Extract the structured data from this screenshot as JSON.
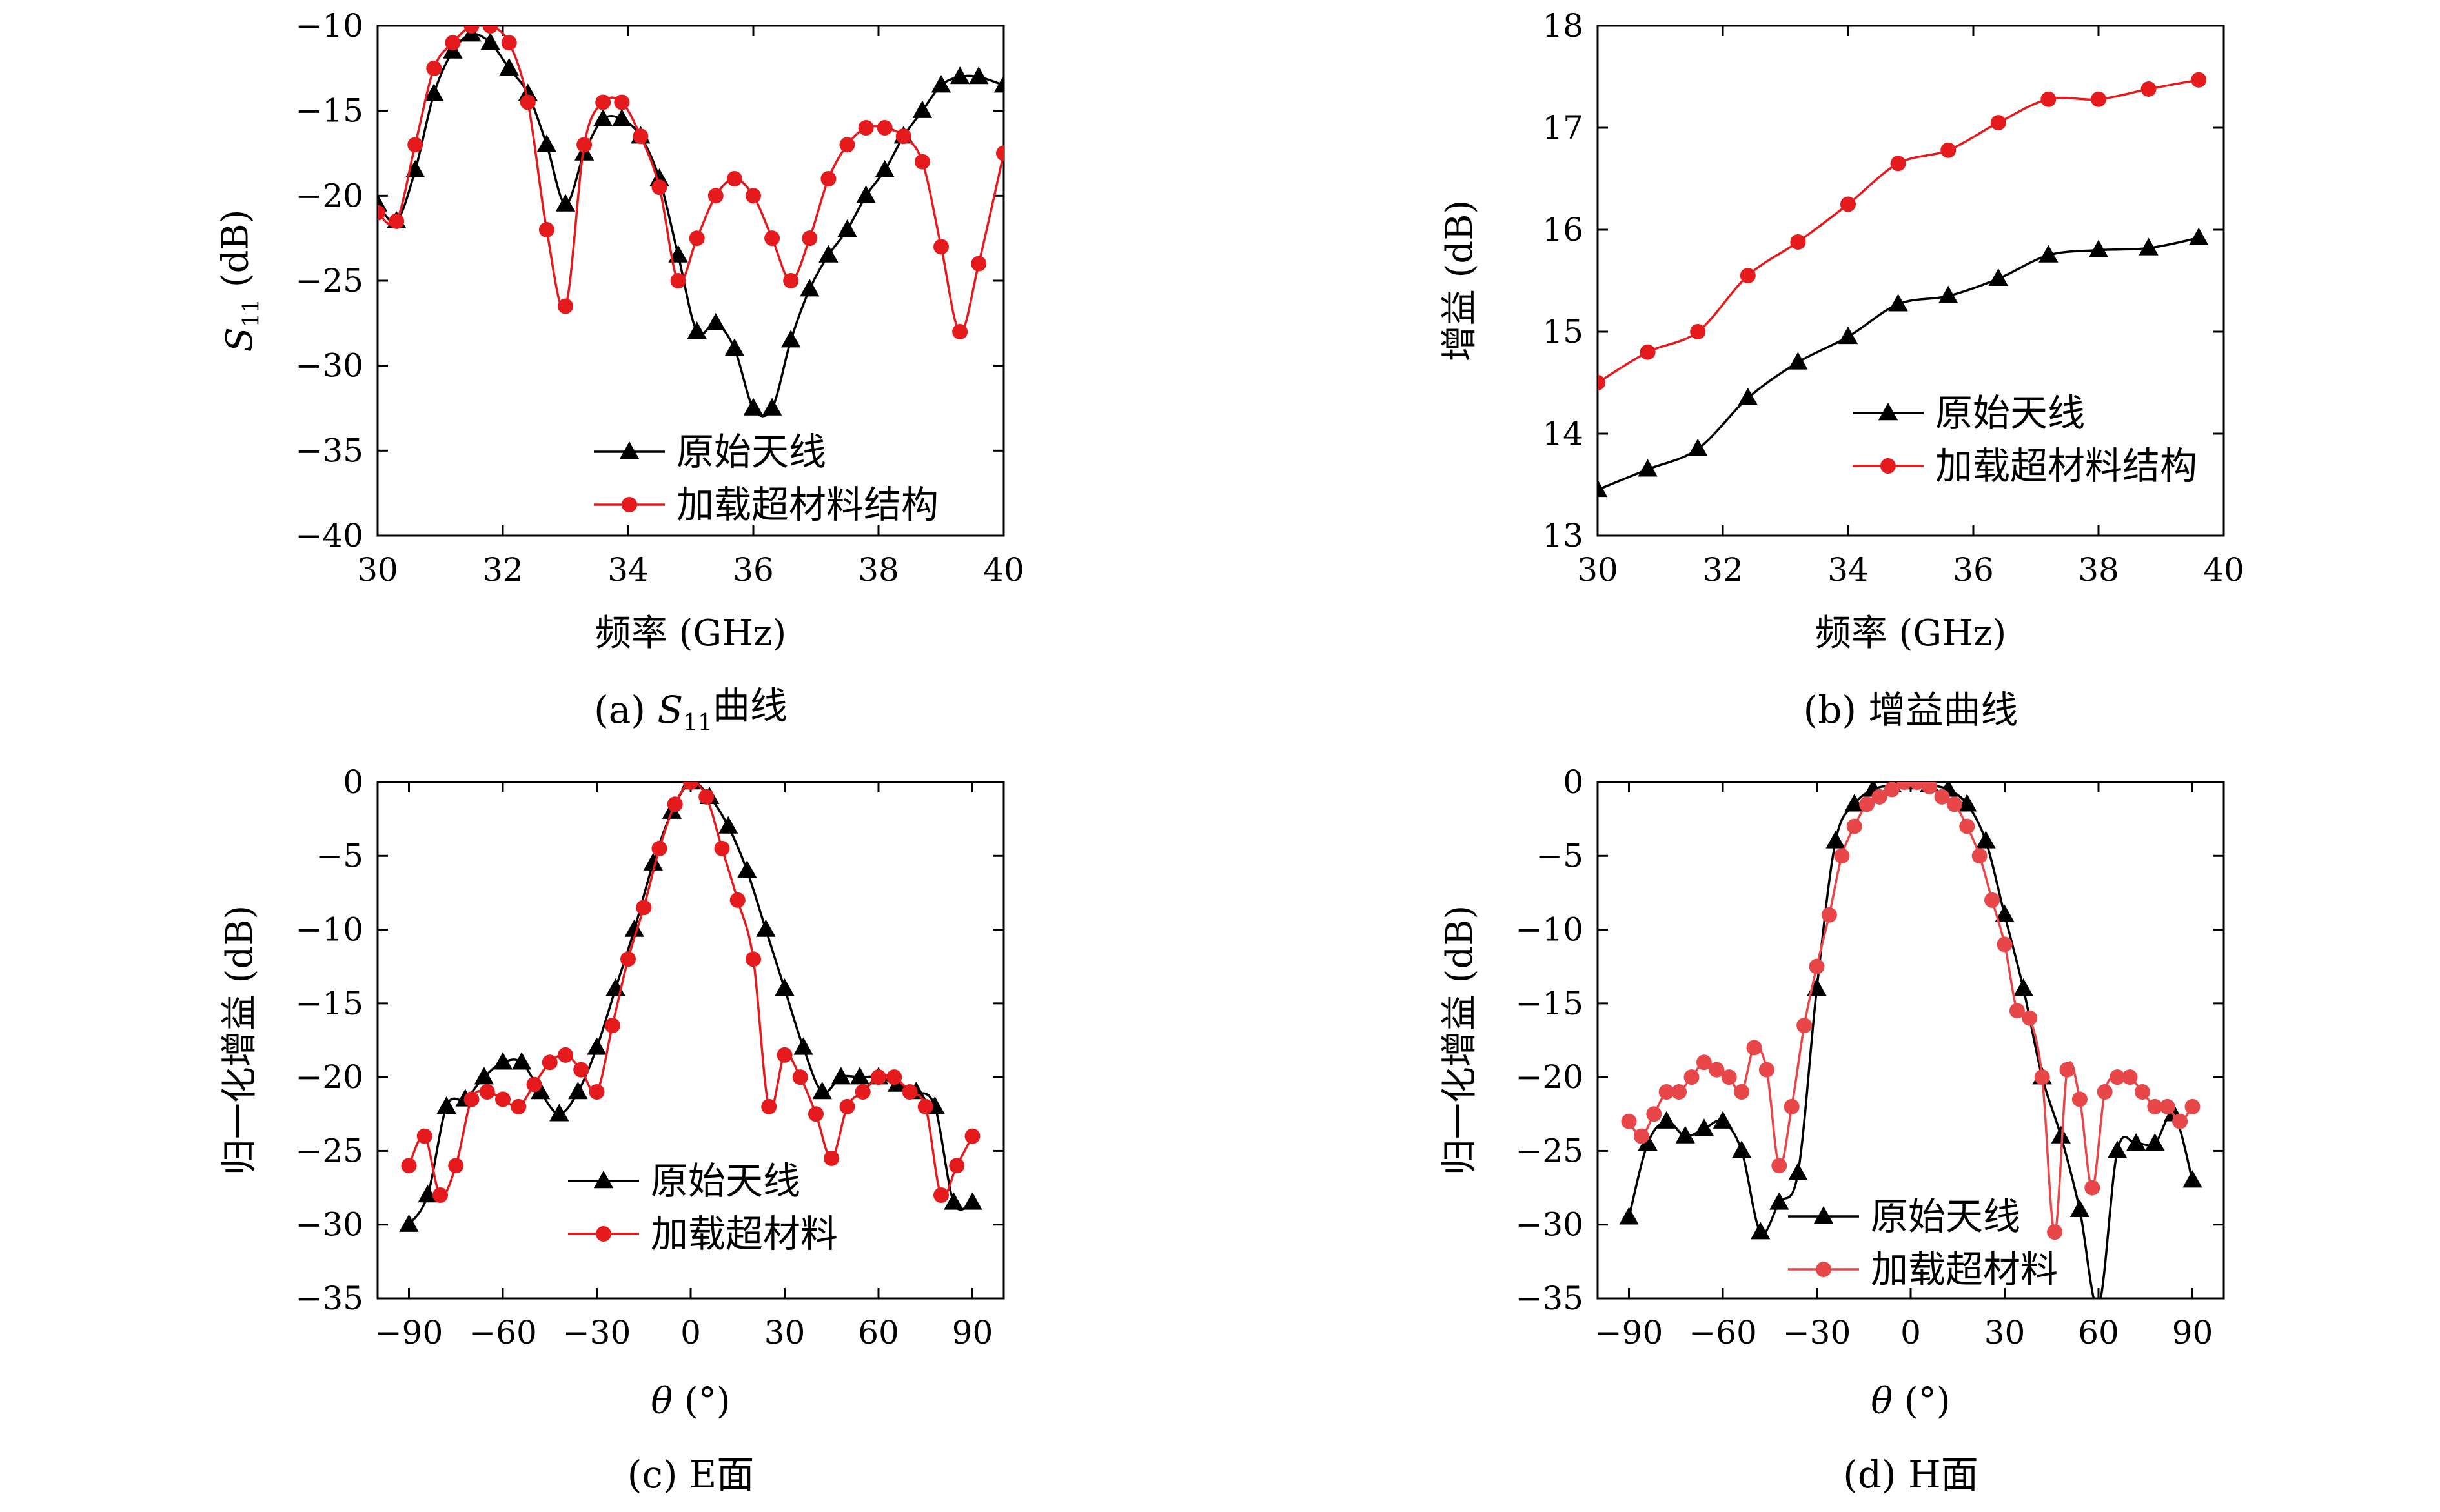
{
  "colors": {
    "original": "#000000",
    "loaded": "#e41a1c",
    "loaded_h": "#e8474a"
  },
  "icons": {
    "original_marker": "triangle-icon",
    "loaded_marker": "circle-icon"
  },
  "chart_data": [
    {
      "id": "a",
      "type": "line",
      "caption_prefix": "(a) ",
      "caption_sym": "S",
      "caption_sub": "11",
      "caption_suffix": "曲线",
      "xlabel": "频率 (GHz)",
      "ylabel_sym": "S",
      "ylabel_sub": "11",
      "ylabel_suffix": " (dB)",
      "xlim": [
        30,
        40
      ],
      "ylim": [
        -40,
        -10
      ],
      "xticks": [
        30,
        32,
        34,
        36,
        38,
        40
      ],
      "yticks": [
        -40,
        -35,
        -30,
        -25,
        -20,
        -15,
        -10
      ],
      "grid": false,
      "legend_position": "bottom-center",
      "series": [
        {
          "name": "原始天线",
          "marker": "triangle",
          "color": "#000000",
          "x": [
            30,
            30.3,
            30.6,
            30.9,
            31.2,
            31.5,
            31.8,
            32.1,
            32.4,
            32.7,
            33.0,
            33.3,
            33.6,
            33.9,
            34.2,
            34.5,
            34.8,
            35.1,
            35.4,
            35.7,
            36.0,
            36.3,
            36.6,
            36.9,
            37.2,
            37.5,
            37.8,
            38.1,
            38.4,
            38.7,
            39.0,
            39.3,
            39.6,
            40.0
          ],
          "y": [
            -20.5,
            -21.5,
            -18.5,
            -14.0,
            -11.5,
            -10.5,
            -11.0,
            -12.5,
            -14.0,
            -17.0,
            -20.5,
            -17.5,
            -15.5,
            -15.5,
            -16.5,
            -19.0,
            -23.5,
            -28.0,
            -27.5,
            -29.0,
            -32.5,
            -32.5,
            -28.5,
            -25.5,
            -23.5,
            -22.0,
            -20.0,
            -18.5,
            -16.5,
            -15.0,
            -13.5,
            -13.0,
            -13.0,
            -13.5
          ]
        },
        {
          "name": "加载超材料结构",
          "marker": "circle",
          "color": "#e41a1c",
          "x": [
            30,
            30.3,
            30.6,
            30.9,
            31.2,
            31.5,
            31.8,
            32.1,
            32.4,
            32.7,
            33.0,
            33.3,
            33.6,
            33.9,
            34.2,
            34.5,
            34.8,
            35.1,
            35.4,
            35.7,
            36.0,
            36.3,
            36.6,
            36.9,
            37.2,
            37.5,
            37.8,
            38.1,
            38.4,
            38.7,
            39.0,
            39.3,
            39.6,
            40.0
          ],
          "y": [
            -21.0,
            -21.5,
            -17.0,
            -12.5,
            -11.0,
            -10.0,
            -10.0,
            -11.0,
            -14.5,
            -22.0,
            -26.5,
            -17.0,
            -14.5,
            -14.5,
            -16.5,
            -19.5,
            -25.0,
            -22.5,
            -20.0,
            -19.0,
            -20.0,
            -22.5,
            -25.0,
            -22.5,
            -19.0,
            -17.0,
            -16.0,
            -16.0,
            -16.5,
            -18.0,
            -23.0,
            -28.0,
            -24.0,
            -17.5
          ]
        }
      ]
    },
    {
      "id": "b",
      "type": "line",
      "caption": "(b) 增益曲线",
      "xlabel": "频率 (GHz)",
      "ylabel": "增益 (dB)",
      "xlim": [
        30,
        40
      ],
      "ylim": [
        13,
        18
      ],
      "xticks": [
        30,
        32,
        34,
        36,
        38,
        40
      ],
      "yticks": [
        13,
        14,
        15,
        16,
        17,
        18
      ],
      "grid": false,
      "legend_position": "bottom-right",
      "series": [
        {
          "name": "原始天线",
          "marker": "triangle",
          "color": "#000000",
          "x": [
            30,
            30.8,
            31.6,
            32.4,
            33.2,
            34.0,
            34.8,
            35.6,
            36.4,
            37.2,
            38.0,
            38.8,
            39.6
          ],
          "y": [
            13.45,
            13.65,
            13.85,
            14.35,
            14.7,
            14.95,
            15.27,
            15.35,
            15.52,
            15.75,
            15.8,
            15.82,
            15.92
          ]
        },
        {
          "name": "加载超材料结构",
          "marker": "circle",
          "color": "#e41a1c",
          "x": [
            30,
            30.8,
            31.6,
            32.4,
            33.2,
            34.0,
            34.8,
            35.6,
            36.4,
            37.2,
            38.0,
            38.8,
            39.6
          ],
          "y": [
            14.5,
            14.8,
            15.0,
            15.55,
            15.88,
            16.25,
            16.65,
            16.78,
            17.05,
            17.28,
            17.28,
            17.38,
            17.47
          ]
        }
      ]
    },
    {
      "id": "c",
      "type": "line",
      "caption": "(c) E面",
      "xlabel_sym": "θ",
      "xlabel_suffix": " (°)",
      "ylabel": "归一化增益 (dB)",
      "xlim": [
        -100,
        100
      ],
      "ylim": [
        -35,
        0
      ],
      "xticks": [
        -90,
        -60,
        -30,
        0,
        30,
        60,
        90
      ],
      "yticks": [
        -35,
        -30,
        -25,
        -20,
        -15,
        -10,
        -5,
        0
      ],
      "grid": false,
      "legend_position": "bottom-center",
      "series": [
        {
          "name": "原始天线",
          "marker": "triangle",
          "color": "#000000",
          "x": [
            -90,
            -84,
            -78,
            -72,
            -66,
            -60,
            -54,
            -48,
            -42,
            -36,
            -30,
            -24,
            -18,
            -12,
            -6,
            0,
            6,
            12,
            18,
            24,
            30,
            36,
            42,
            48,
            54,
            60,
            66,
            72,
            78,
            84,
            90
          ],
          "y": [
            -30,
            -28,
            -22,
            -21.5,
            -20,
            -19,
            -19,
            -21,
            -22.5,
            -21,
            -18,
            -14,
            -10,
            -5.5,
            -2,
            0,
            -1,
            -3,
            -6,
            -10,
            -14,
            -18,
            -21,
            -20,
            -20,
            -20,
            -20.5,
            -21,
            -22,
            -28.5,
            -28.5
          ]
        },
        {
          "name": "加载超材料",
          "marker": "circle",
          "color": "#e41a1c",
          "x": [
            -90,
            -85,
            -80,
            -75,
            -70,
            -65,
            -60,
            -55,
            -50,
            -45,
            -40,
            -35,
            -30,
            -25,
            -20,
            -15,
            -10,
            -5,
            0,
            5,
            10,
            15,
            20,
            25,
            30,
            35,
            40,
            45,
            50,
            55,
            60,
            65,
            70,
            75,
            80,
            85,
            90
          ],
          "y": [
            -26,
            -24,
            -28,
            -26,
            -21.5,
            -21,
            -21.5,
            -22,
            -20.5,
            -19,
            -18.5,
            -19.5,
            -21,
            -16.5,
            -12,
            -8.5,
            -4.5,
            -1.5,
            0,
            -1,
            -4.5,
            -8,
            -12,
            -22,
            -18.5,
            -20,
            -22.5,
            -25.5,
            -22,
            -21,
            -20,
            -20,
            -21,
            -22,
            -28,
            -26,
            -24
          ]
        }
      ]
    },
    {
      "id": "d",
      "type": "line",
      "caption": "(d) H面",
      "xlabel_sym": "θ",
      "xlabel_suffix": " (°)",
      "ylabel": "归一化增益 (dB)",
      "xlim": [
        -100,
        100
      ],
      "ylim": [
        -35,
        0
      ],
      "xticks": [
        -90,
        -60,
        -30,
        0,
        30,
        60,
        90
      ],
      "yticks": [
        -35,
        -30,
        -25,
        -20,
        -15,
        -10,
        -5,
        0
      ],
      "grid": false,
      "legend_position": "bottom-left",
      "series": [
        {
          "name": "原始天线",
          "marker": "triangle",
          "color": "#000000",
          "x": [
            -90,
            -84,
            -78,
            -72,
            -66,
            -60,
            -54,
            -48,
            -42,
            -36,
            -30,
            -24,
            -18,
            -12,
            -6,
            0,
            6,
            12,
            18,
            24,
            30,
            36,
            42,
            48,
            54,
            60,
            66,
            72,
            78,
            84,
            90
          ],
          "y": [
            -29.5,
            -24.5,
            -23,
            -24,
            -23.5,
            -23,
            -25,
            -30.5,
            -28.5,
            -26.5,
            -14,
            -4,
            -1.5,
            -0.5,
            -0.2,
            0,
            -0.2,
            -0.5,
            -1.5,
            -4,
            -9,
            -14,
            -20,
            -24,
            -29,
            -35.5,
            -25,
            -24.5,
            -24.5,
            -22.5,
            -27
          ]
        },
        {
          "name": "加载超材料",
          "marker": "circle",
          "color": "#e8474a",
          "x": [
            -90,
            -86,
            -82,
            -78,
            -74,
            -70,
            -66,
            -62,
            -58,
            -54,
            -50,
            -46,
            -42,
            -38,
            -34,
            -30,
            -26,
            -22,
            -18,
            -14,
            -10,
            -6,
            -2,
            2,
            6,
            10,
            14,
            18,
            22,
            26,
            30,
            34,
            38,
            42,
            46,
            50,
            54,
            58,
            62,
            66,
            70,
            74,
            78,
            82,
            86,
            90
          ],
          "y": [
            -23,
            -24,
            -22.5,
            -21,
            -21,
            -20,
            -19,
            -19.5,
            -20,
            -21,
            -18,
            -19.5,
            -26,
            -22,
            -16.5,
            -12.5,
            -9,
            -5,
            -3,
            -1.5,
            -1,
            -0.5,
            0,
            0,
            -0.3,
            -1,
            -1.5,
            -3,
            -5,
            -8,
            -11,
            -15.5,
            -16,
            -20,
            -30.5,
            -19.5,
            -21.5,
            -27.5,
            -21,
            -20,
            -20,
            -21,
            -22,
            -22,
            -23,
            -22
          ]
        }
      ]
    }
  ]
}
